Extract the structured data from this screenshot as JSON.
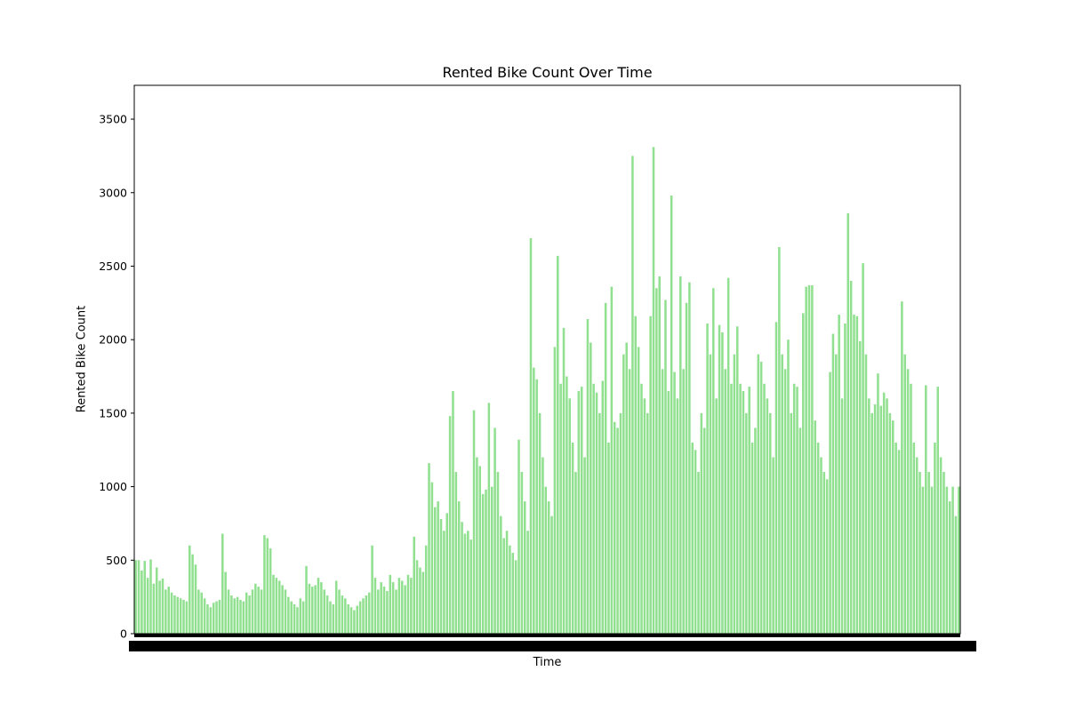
{
  "chart_data": {
    "type": "bar",
    "title": "Rented Bike Count Over Time",
    "xlabel": "Time",
    "ylabel": "Rented Bike Count",
    "ylim": [
      0,
      3730
    ],
    "yticks": [
      0,
      500,
      1000,
      1500,
      2000,
      2500,
      3000,
      3500
    ],
    "bar_color": "#90e090",
    "grid": false,
    "x_tick_labels_note": "dense overlapping black tick labels along the x-axis (unreadable)",
    "series": [
      {
        "values": [
          500,
          500,
          430,
          495,
          380,
          505,
          340,
          450,
          360,
          375,
          300,
          320,
          280,
          260,
          250,
          240,
          230,
          220,
          600,
          540,
          470,
          300,
          280,
          240,
          200,
          180,
          210,
          220,
          230,
          680,
          420,
          300,
          260,
          240,
          250,
          230,
          220,
          280,
          260,
          300,
          340,
          320,
          300,
          670,
          650,
          580,
          400,
          380,
          360,
          330,
          300,
          250,
          220,
          200,
          180,
          240,
          220,
          460,
          340,
          320,
          330,
          380,
          350,
          300,
          260,
          220,
          200,
          360,
          300,
          260,
          240,
          200,
          180,
          160,
          190,
          220,
          240,
          260,
          280,
          600,
          380,
          300,
          350,
          320,
          290,
          400,
          350,
          300,
          380,
          360,
          330,
          400,
          380,
          660,
          500,
          450,
          420,
          600,
          1160,
          1030,
          860,
          900,
          780,
          700,
          820,
          1480,
          1650,
          1100,
          900,
          760,
          680,
          700,
          640,
          1520,
          1200,
          1140,
          950,
          980,
          1570,
          1000,
          1400,
          1100,
          800,
          650,
          700,
          600,
          550,
          500,
          1320,
          1100,
          900,
          700,
          2690,
          1810,
          1730,
          1500,
          1200,
          1000,
          900,
          800,
          1950,
          2570,
          1700,
          2080,
          1750,
          1600,
          1300,
          1100,
          1650,
          1680,
          1200,
          2140,
          1980,
          1700,
          1640,
          1500,
          1720,
          2250,
          1300,
          2360,
          1440,
          1400,
          1500,
          1900,
          1980,
          1800,
          3250,
          2160,
          1950,
          1700,
          1600,
          1500,
          2160,
          3310,
          2350,
          2430,
          1800,
          2270,
          1650,
          2980,
          1780,
          1600,
          2430,
          1800,
          2250,
          2390,
          1300,
          1250,
          1100,
          1500,
          1400,
          2110,
          1900,
          2350,
          1600,
          2100,
          2050,
          1800,
          2420,
          1700,
          1900,
          2090,
          1700,
          1650,
          1500,
          1680,
          1300,
          1400,
          1900,
          1850,
          1700,
          1600,
          1500,
          1200,
          2120,
          2630,
          1900,
          1800,
          2000,
          1500,
          1700,
          1680,
          1400,
          2180,
          2360,
          2370,
          2370,
          1450,
          1300,
          1200,
          1100,
          1050,
          1780,
          2040,
          1900,
          2170,
          1600,
          2110,
          2860,
          2400,
          2170,
          2160,
          1990,
          2520,
          1900,
          1600,
          1500,
          1560,
          1770,
          1550,
          1640,
          1600,
          1500,
          1450,
          1300,
          1250,
          2260,
          1900,
          1800,
          1700,
          1300,
          1200,
          1100,
          1000,
          1690,
          1100,
          1000,
          1300,
          1680,
          1200,
          1100,
          1000,
          900,
          1000,
          800,
          1000
        ]
      }
    ]
  }
}
